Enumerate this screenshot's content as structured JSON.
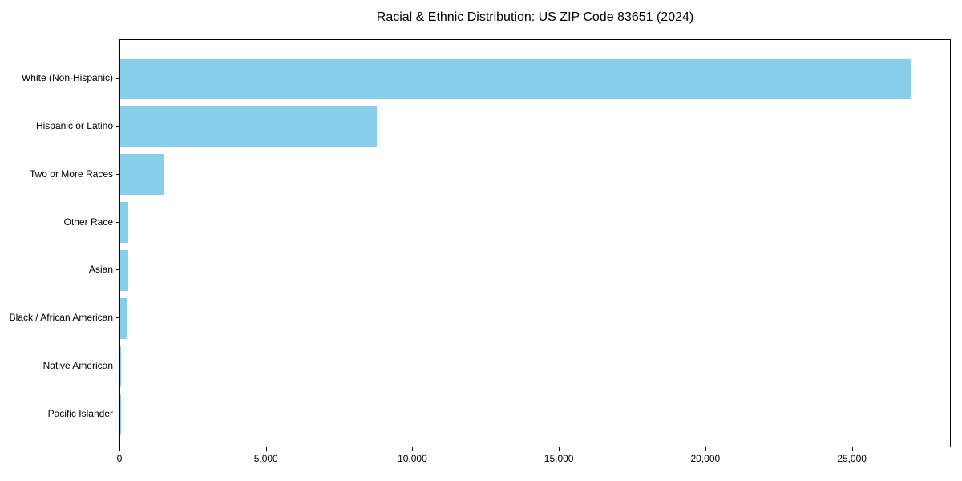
{
  "chart_data": {
    "type": "bar",
    "orientation": "horizontal",
    "title": "Racial & Ethnic Distribution: US ZIP Code 83651 (2024)",
    "categories": [
      "White (Non-Hispanic)",
      "Hispanic or Latino",
      "Two or More Races",
      "Other Race",
      "Asian",
      "Black / African American",
      "Native American",
      "Pacific Islander"
    ],
    "values": [
      27000,
      8750,
      1500,
      280,
      270,
      230,
      40,
      12
    ],
    "title_color": "#000000",
    "xlabel": "",
    "ylabel": "",
    "xlim": [
      0,
      28350
    ],
    "xticks": [
      {
        "value": 0,
        "label": "0"
      },
      {
        "value": 5000,
        "label": "5,000"
      },
      {
        "value": 10000,
        "label": "10,000"
      },
      {
        "value": 15000,
        "label": "15,000"
      },
      {
        "value": 20000,
        "label": "20,000"
      },
      {
        "value": 25000,
        "label": "25,000"
      }
    ],
    "bar_color": "#87CEEB",
    "axis_color": "#000000",
    "background_color": "#FFFFFF",
    "grid": false,
    "legend": null
  }
}
